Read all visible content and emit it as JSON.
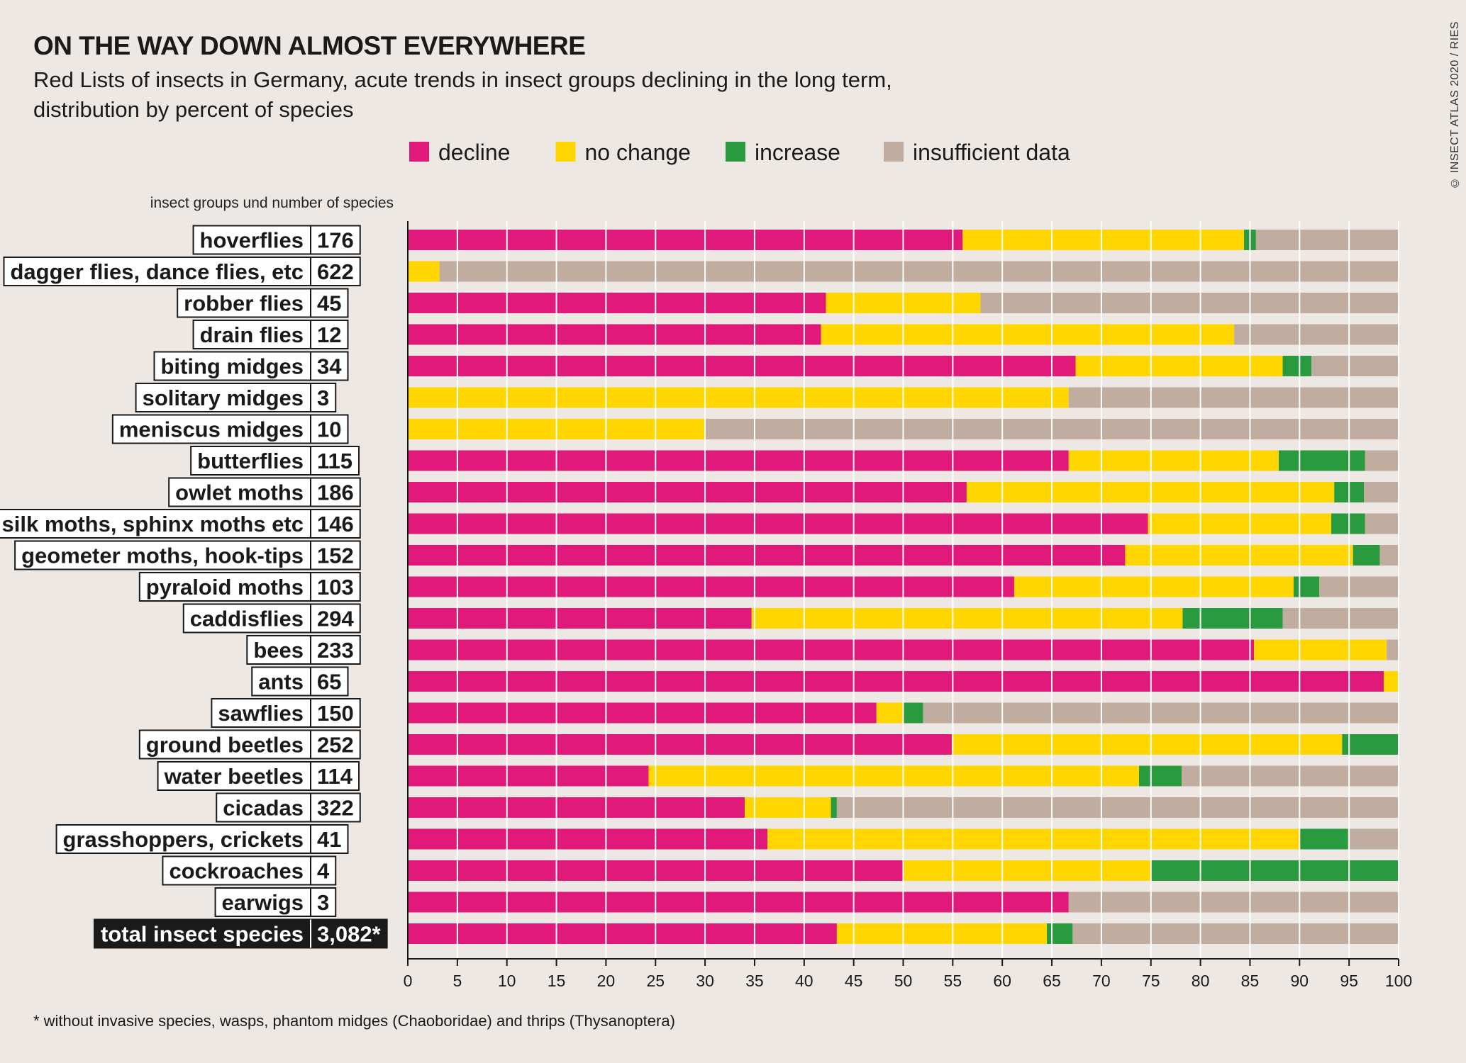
{
  "title": "ON THE WAY DOWN ALMOST EVERYWHERE",
  "subtitle": "Red Lists of insects in Germany, acute trends in insect groups declining in the long term, distribution by percent of species",
  "credit": "© INSECT ATLAS 2020 / RIES",
  "footnote": "* without invasive species, wasps, phantom midges (Chaoboridae) and thrips (Thysanoptera)",
  "chart_data": {
    "type": "bar",
    "orientation": "horizontal",
    "stacked": true,
    "title": "ON THE WAY DOWN ALMOST EVERYWHERE",
    "ylabel": "insect groups und number of species",
    "xlabel": "",
    "xlim": [
      0,
      100
    ],
    "xticks": [
      0,
      5,
      10,
      15,
      20,
      25,
      30,
      35,
      40,
      45,
      50,
      55,
      60,
      65,
      70,
      75,
      80,
      85,
      90,
      95,
      100
    ],
    "legend_position": "top",
    "categories": [
      "hoverflies",
      "dagger flies, dance flies, etc",
      "robber flies",
      "drain flies",
      "biting midges",
      "solitary midges",
      "meniscus midges",
      "butterflies",
      "owlet moths",
      "silk moths, sphinx moths etc",
      "geometer moths, hook-tips",
      "pyraloid moths",
      "caddisflies",
      "bees",
      "ants",
      "sawflies",
      "ground beetles",
      "water beetles",
      "cicadas",
      "grasshoppers, crickets",
      "cockroaches",
      "earwigs",
      "total insect species"
    ],
    "species_counts": [
      "176",
      "622",
      "45",
      "12",
      "34",
      "3",
      "10",
      "115",
      "186",
      "146",
      "152",
      "103",
      "294",
      "233",
      "65",
      "150",
      "252",
      "114",
      "322",
      "41",
      "4",
      "3",
      "3,082*"
    ],
    "highlight_category": "total insect species",
    "series": [
      {
        "name": "decline",
        "color": "#e0197a",
        "values": [
          56.0,
          0,
          42.2,
          41.7,
          67.4,
          0,
          0,
          66.7,
          56.4,
          74.7,
          72.4,
          61.2,
          34.7,
          85.4,
          98.5,
          47.3,
          54.9,
          24.3,
          34.0,
          36.3,
          50.0,
          66.7,
          43.3
        ]
      },
      {
        "name": "no change",
        "color": "#ffd600",
        "values": [
          28.4,
          3.2,
          15.6,
          41.7,
          20.9,
          66.7,
          30.0,
          21.2,
          37.1,
          18.5,
          23.0,
          28.2,
          43.5,
          13.4,
          1.5,
          2.7,
          39.4,
          49.5,
          8.7,
          53.7,
          25.0,
          0,
          21.2
        ]
      },
      {
        "name": "increase",
        "color": "#2a9a3e",
        "values": [
          1.2,
          0,
          0,
          0,
          2.9,
          0,
          0,
          8.7,
          3.0,
          3.4,
          2.7,
          2.6,
          10.1,
          0,
          0,
          2.0,
          5.7,
          4.3,
          0.6,
          4.9,
          25.0,
          0,
          2.6
        ]
      },
      {
        "name": "insufficient data",
        "color": "#c0ada0",
        "values": [
          14.4,
          96.8,
          42.2,
          16.6,
          8.8,
          33.3,
          70.0,
          3.4,
          3.5,
          3.4,
          1.9,
          8.0,
          11.7,
          1.2,
          0,
          48.0,
          0,
          21.9,
          56.7,
          5.1,
          0,
          33.3,
          32.9
        ]
      }
    ]
  }
}
